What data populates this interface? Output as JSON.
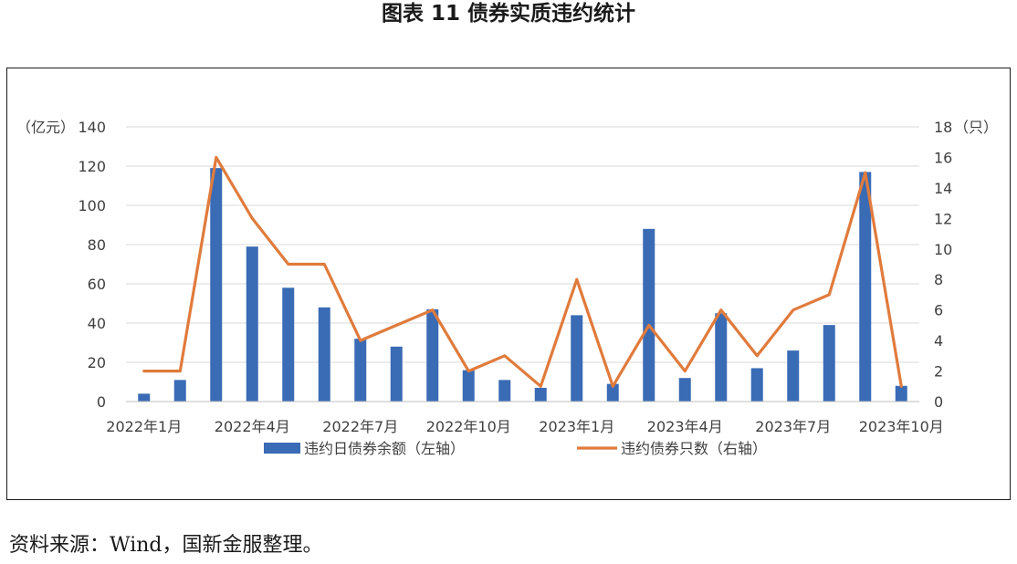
{
  "title": "图表 11  债券实质违约统计",
  "source": "资料来源：Wind，国新金服整理。",
  "chart_data": {
    "type": "bar+line",
    "categories": [
      "2022年1月",
      "2022年2月",
      "2022年3月",
      "2022年4月",
      "2022年5月",
      "2022年6月",
      "2022年7月",
      "2022年8月",
      "2022年9月",
      "2022年10月",
      "2022年11月",
      "2022年12月",
      "2023年1月",
      "2023年2月",
      "2023年3月",
      "2023年4月",
      "2023年5月",
      "2023年6月",
      "2023年7月",
      "2023年8月",
      "2023年9月",
      "2023年10月"
    ],
    "x_tick_labels": [
      "2022年1月",
      "2022年4月",
      "2022年7月",
      "2022年10月",
      "2023年1月",
      "2023年4月",
      "2023年7月",
      "2023年10月"
    ],
    "series": [
      {
        "name": "违约日债券余额（左轴）",
        "type": "bar",
        "axis": "left",
        "values": [
          4,
          11,
          119,
          79,
          58,
          48,
          32,
          28,
          47,
          16,
          11,
          7,
          44,
          9,
          88,
          12,
          45,
          17,
          26,
          39,
          117,
          8
        ]
      },
      {
        "name": "违约债券只数（右轴）",
        "type": "line",
        "axis": "right",
        "values": [
          2,
          2,
          16,
          12,
          9,
          9,
          4,
          5,
          6,
          2,
          3,
          1,
          8,
          1,
          5,
          2,
          6,
          3,
          6,
          7,
          15,
          1
        ]
      }
    ],
    "y_left": {
      "unit_label": "（亿元）",
      "range": [
        0,
        140
      ],
      "ticks": [
        0,
        20,
        40,
        60,
        80,
        100,
        120,
        140
      ]
    },
    "y_right": {
      "unit_label": "（只）",
      "range": [
        0,
        18
      ],
      "ticks": [
        0,
        2,
        4,
        6,
        8,
        10,
        12,
        14,
        16,
        18
      ]
    },
    "colors": {
      "bar": "#3a6bb5",
      "line": "#e07b3c",
      "grid": "#d9d9d9",
      "axis": "#bfbfbf"
    },
    "grid": true,
    "legend_position": "bottom"
  }
}
